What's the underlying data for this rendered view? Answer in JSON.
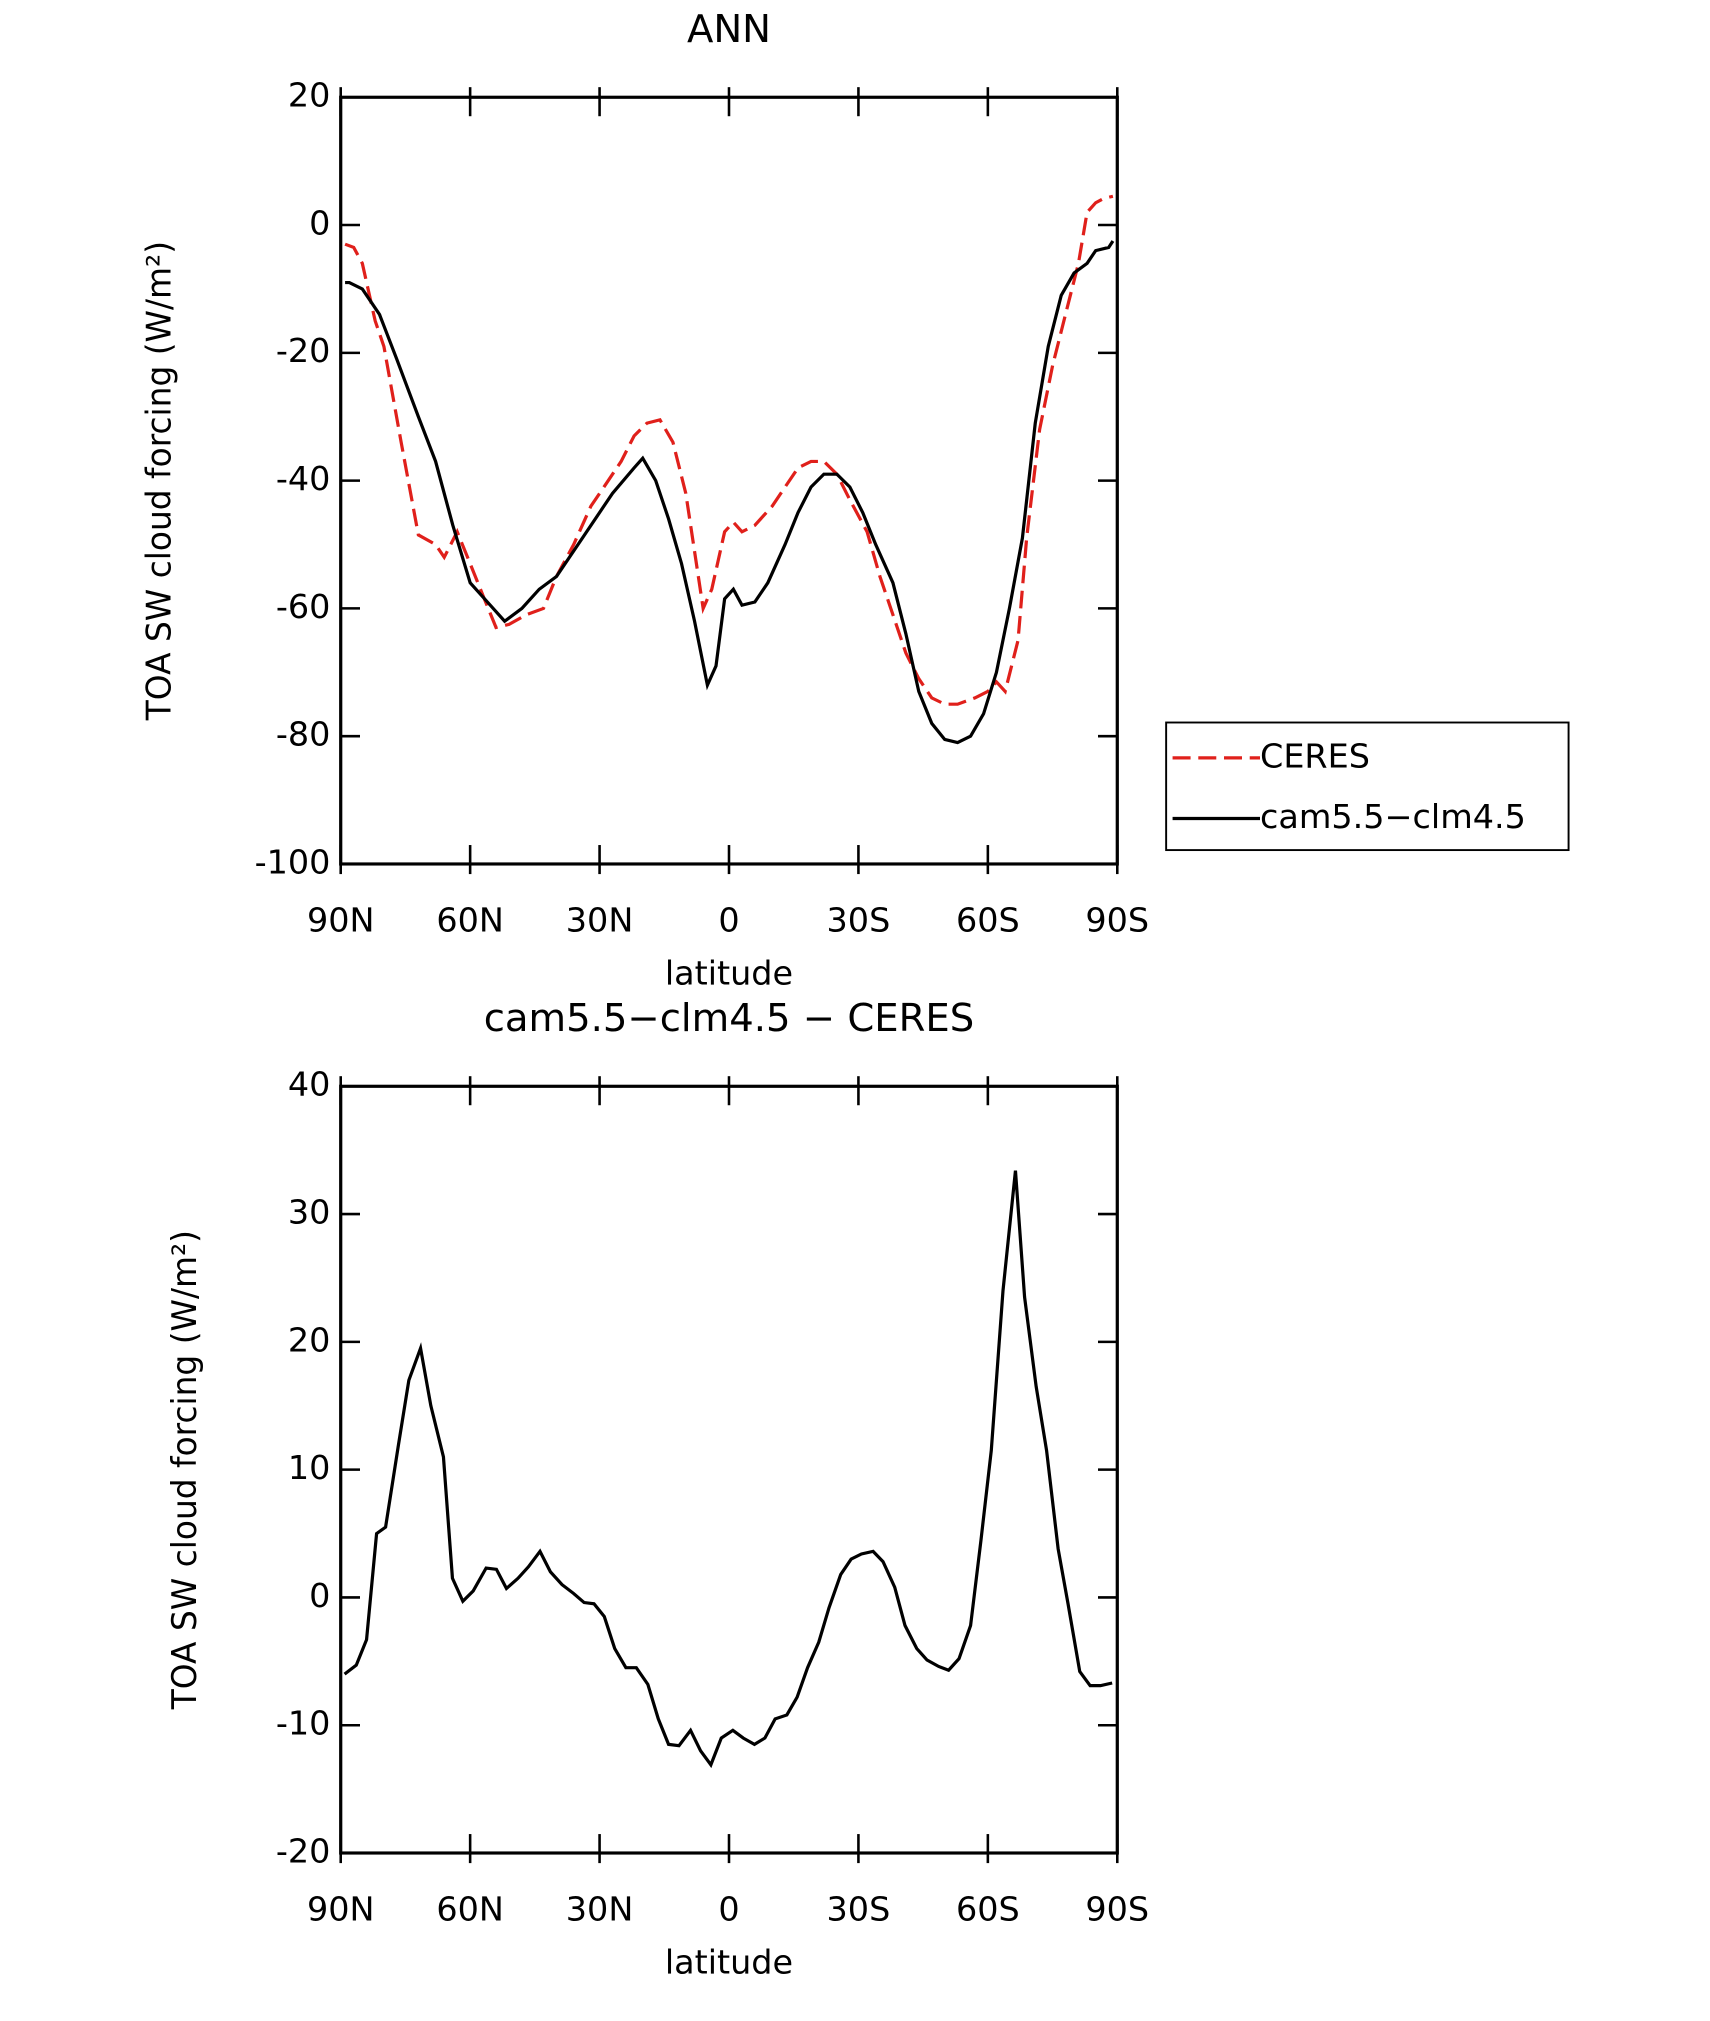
{
  "chart_data": [
    {
      "type": "line",
      "title": "ANN",
      "ylabel": "TOA SW cloud forcing (W/m²)",
      "xlabel": "latitude",
      "xlim": [
        90,
        -90
      ],
      "xticks": [
        {
          "value": 90,
          "label": "90N"
        },
        {
          "value": 60,
          "label": "60N"
        },
        {
          "value": 30,
          "label": "30N"
        },
        0,
        {
          "value": -30,
          "label": "30S"
        },
        {
          "value": -60,
          "label": "60S"
        },
        {
          "value": -90,
          "label": "90S"
        }
      ],
      "ylim": [
        -100,
        20
      ],
      "yticks": [
        -100,
        -80,
        -60,
        -40,
        -20,
        0,
        20
      ],
      "legend": "right",
      "series": [
        {
          "name": "CERES",
          "color": "#e0201b",
          "dash": true,
          "x": [
            89,
            87,
            85,
            82,
            80,
            76,
            72,
            68,
            66,
            63,
            60,
            57,
            54,
            51,
            47,
            43,
            40,
            36,
            32,
            29,
            25,
            22,
            19,
            16,
            13,
            10,
            6,
            4,
            1,
            -1,
            -3,
            -6,
            -10,
            -13,
            -16,
            -19,
            -22,
            -25,
            -28,
            -32,
            -35,
            -38,
            -41,
            -44,
            -47,
            -50,
            -53,
            -57,
            -60,
            -62,
            -64,
            -67,
            -69,
            -72,
            -75,
            -78,
            -81,
            -83,
            -85,
            -87,
            -89
          ],
          "values": [
            -3,
            -3.5,
            -6,
            -15,
            -19,
            -34,
            -48.5,
            -50,
            -52,
            -48,
            -53,
            -58,
            -63,
            -62.5,
            -61,
            -60,
            -55,
            -50,
            -44,
            -41,
            -37,
            -33,
            -31,
            -30.5,
            -34,
            -42,
            -60,
            -57,
            -48,
            -46.5,
            -48,
            -47,
            -44,
            -41,
            -38,
            -37,
            -37,
            -39,
            -43,
            -48,
            -55,
            -61,
            -67,
            -71,
            -74,
            -75,
            -75,
            -74,
            -73,
            -71.5,
            -73,
            -65,
            -49,
            -32,
            -22,
            -14,
            -6,
            2,
            3.5,
            4.2,
            4.5
          ]
        },
        {
          "name": "cam5.5−clm4.5",
          "color": "#000000",
          "dash": false,
          "x": [
            89,
            88,
            85,
            81,
            77,
            72,
            68,
            64,
            60,
            56,
            52,
            48,
            44,
            40,
            35,
            30,
            27,
            22,
            20,
            17,
            14,
            11,
            8,
            5,
            3,
            1,
            -1,
            -3,
            -6,
            -9,
            -13,
            -16,
            -19,
            -22,
            -25,
            -28,
            -31,
            -34,
            -38,
            -41,
            -44,
            -47,
            -50,
            -53,
            -56,
            -59,
            -62,
            -65,
            -68,
            -71,
            -74,
            -77,
            -80,
            -83,
            -85,
            -88,
            -89
          ],
          "values": [
            -9,
            -9,
            -10,
            -14,
            -21,
            -30,
            -37,
            -47,
            -56,
            -59,
            -62,
            -60,
            -57,
            -55,
            -50,
            -45,
            -42,
            -38,
            -36.5,
            -40,
            -46,
            -53,
            -62,
            -72,
            -69,
            -58.5,
            -57,
            -59.5,
            -59,
            -56,
            -50,
            -45,
            -41,
            -39,
            -39,
            -41,
            -45,
            -50,
            -56,
            -64,
            -73,
            -78,
            -80.5,
            -81,
            -80,
            -76.5,
            -70,
            -60,
            -49,
            -31,
            -19,
            -11,
            -7.5,
            -6,
            -4,
            -3.5,
            -2.5
          ]
        }
      ]
    },
    {
      "type": "line",
      "title": "cam5.5−clm4.5 − CERES",
      "ylabel": "TOA SW cloud forcing (W/m²)",
      "xlabel": "latitude",
      "xlim": [
        90,
        -90
      ],
      "xticks": [
        {
          "value": 90,
          "label": "90N"
        },
        {
          "value": 60,
          "label": "60N"
        },
        {
          "value": 30,
          "label": "30N"
        },
        0,
        {
          "value": -30,
          "label": "30S"
        },
        {
          "value": -60,
          "label": "60S"
        },
        {
          "value": -90,
          "label": "90S"
        }
      ],
      "ylim": [
        -20,
        40
      ],
      "yticks": [
        -20,
        -10,
        0,
        10,
        20,
        30,
        40
      ],
      "series": [
        {
          "color": "#000000",
          "x": [
            89.1,
            86.4,
            84,
            81.7,
            79.6,
            76.6,
            74.2,
            71.5,
            69.1,
            66.2,
            64.1,
            61.7,
            59.3,
            56.3,
            53.9,
            51.6,
            48.9,
            46.5,
            43.8,
            41.4,
            38.7,
            36,
            33.6,
            31.3,
            28.9,
            26.5,
            23.9,
            21.5,
            18.8,
            16.4,
            14,
            11.6,
            8.9,
            6.6,
            4.2,
            1.8,
            -0.9,
            -3.3,
            -5.9,
            -8.3,
            -10.7,
            -13.4,
            -15.8,
            -18.2,
            -20.8,
            -23.2,
            -25.9,
            -28.3,
            -30.7,
            -33.4,
            -35.7,
            -38.4,
            -40.8,
            -43.5,
            -45.9,
            -48.6,
            -50.9,
            -53.3,
            -56,
            -58.4,
            -60.8,
            -63.5,
            -66.4,
            -68.5,
            -71.2,
            -73.6,
            -76.3,
            -78.6,
            -81.3,
            -83.7,
            -86.1,
            -88.8
          ],
          "values": [
            -6,
            -5.3,
            -3.3,
            5,
            5.5,
            12,
            17,
            19.5,
            15,
            11,
            1.5,
            -0.3,
            0.5,
            2.3,
            2.2,
            0.7,
            1.5,
            2.4,
            3.6,
            2,
            1,
            0.3,
            -0.4,
            -0.5,
            -1.5,
            -4,
            -5.5,
            -5.5,
            -6.8,
            -9.5,
            -11.5,
            -11.6,
            -10.4,
            -12,
            -13.1,
            -11,
            -10.4,
            -11,
            -11.5,
            -11,
            -9.5,
            -9.2,
            -7.8,
            -5.5,
            -3.5,
            -0.8,
            1.8,
            3,
            3.4,
            3.6,
            2.8,
            0.8,
            -2.2,
            -4,
            -4.9,
            -5.4,
            -5.7,
            -4.8,
            -2.2,
            4.5,
            11.5,
            24,
            33.4,
            23.5,
            16.5,
            11.5,
            3.8,
            -0.5,
            -5.8,
            -6.9,
            -6.9,
            -6.7
          ]
        }
      ]
    }
  ]
}
